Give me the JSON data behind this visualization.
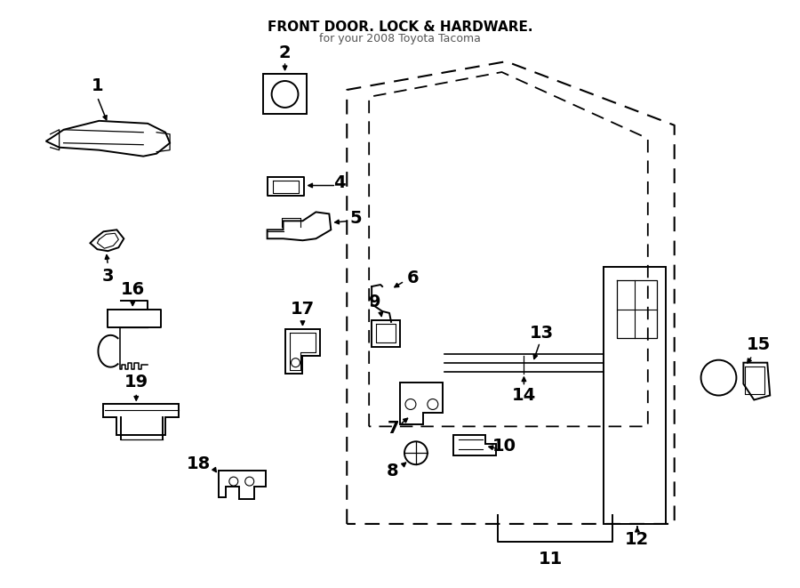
{
  "bg_color": "#ffffff",
  "line_color": "#000000",
  "figsize": [
    9.0,
    6.61
  ],
  "dpi": 100,
  "title": "FRONT DOOR. LOCK & HARDWARE.",
  "subtitle": "for your 2008 Toyota Tacoma"
}
